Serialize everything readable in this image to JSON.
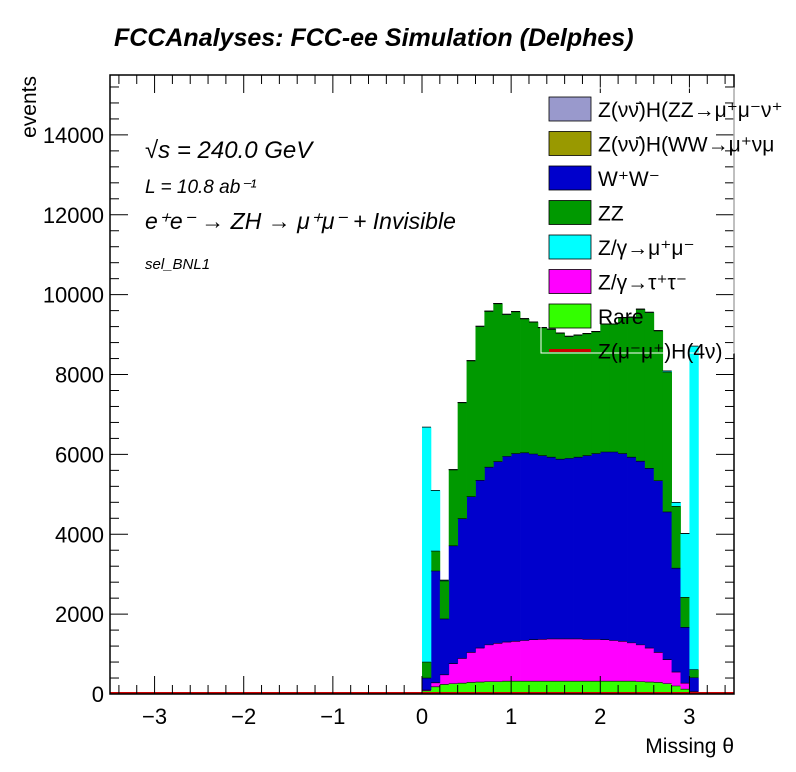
{
  "title": "FCCAnalyses: FCC-ee Simulation (Delphes)",
  "annotations": {
    "energy": "√s = 240.0 GeV",
    "lumi": "L = 10.8 ab⁻¹",
    "process": "e⁺e⁻ → ZH → μ⁺μ⁻ + Invisible",
    "selection": "sel_BNL1"
  },
  "chart_data": {
    "type": "bar",
    "stacked": true,
    "xlabel": "Missing θ",
    "ylabel": "events",
    "xlim": [
      -3.5,
      3.5
    ],
    "ylim": [
      0,
      15500
    ],
    "xticks": [
      -3,
      -2,
      -1,
      0,
      1,
      2,
      3
    ],
    "yticks": [
      0,
      2000,
      4000,
      6000,
      8000,
      10000,
      12000,
      14000
    ],
    "grid": false,
    "legend_position": "top-right",
    "bin_width": 0.1,
    "x": [
      0.05,
      0.15,
      0.25,
      0.35,
      0.45,
      0.55,
      0.65,
      0.75,
      0.85,
      0.95,
      1.05,
      1.15,
      1.25,
      1.35,
      1.45,
      1.55,
      1.65,
      1.75,
      1.85,
      1.95,
      2.05,
      2.15,
      2.25,
      2.35,
      2.45,
      2.55,
      2.65,
      2.75,
      2.85,
      2.95,
      3.05
    ],
    "series": [
      {
        "name": "Rare",
        "color": "#33ff00",
        "values": [
          80,
          180,
          240,
          260,
          270,
          290,
          300,
          310,
          310,
          320,
          320,
          320,
          320,
          320,
          320,
          320,
          320,
          320,
          320,
          320,
          320,
          320,
          320,
          320,
          310,
          300,
          290,
          260,
          200,
          120,
          40
        ]
      },
      {
        "name": "Z/γ→τ⁺τ⁻",
        "color": "#ff00ff",
        "values": [
          20,
          100,
          240,
          500,
          620,
          750,
          850,
          920,
          960,
          980,
          1000,
          1020,
          1040,
          1050,
          1060,
          1060,
          1060,
          1060,
          1050,
          1050,
          1040,
          1020,
          1000,
          960,
          920,
          850,
          750,
          600,
          350,
          150,
          20
        ]
      },
      {
        "name": "W⁺W⁻",
        "color": "#0000cc",
        "values": [
          300,
          2800,
          1400,
          2950,
          3500,
          3900,
          4200,
          4450,
          4550,
          4650,
          4700,
          4700,
          4650,
          4600,
          4550,
          4500,
          4520,
          4550,
          4600,
          4650,
          4700,
          4720,
          4700,
          4650,
          4600,
          4500,
          4300,
          3700,
          2600,
          1400,
          350
        ]
      },
      {
        "name": "ZZ",
        "color": "#009900",
        "values": [
          400,
          500,
          950,
          1900,
          2900,
          3400,
          3850,
          3900,
          3950,
          3550,
          3550,
          3350,
          3300,
          3200,
          3200,
          3150,
          3050,
          3050,
          3050,
          3050,
          3200,
          3200,
          3400,
          3500,
          3800,
          3900,
          3750,
          3500,
          1550,
          750,
          200
        ]
      },
      {
        "name": "Z/γ→μ⁺μ⁻",
        "color": "#00ffff",
        "values": [
          5880,
          1520,
          20,
          10,
          10,
          10,
          10,
          10,
          10,
          10,
          10,
          10,
          10,
          10,
          10,
          10,
          10,
          10,
          10,
          10,
          10,
          10,
          10,
          10,
          10,
          10,
          10,
          30,
          100,
          1600,
          8100
        ]
      },
      {
        "name": "Z(ν̄ν)H(WW→μ⁺νμ⁻ν̄)",
        "color": "#999900",
        "values": [
          0,
          0,
          0,
          0,
          0,
          0,
          0,
          0,
          0,
          0,
          0,
          0,
          0,
          0,
          0,
          0,
          0,
          0,
          0,
          0,
          0,
          0,
          0,
          0,
          0,
          0,
          0,
          0,
          0,
          0,
          0
        ]
      },
      {
        "name": "Z(ν̄ν)H(ZZ→μ⁺μ⁻ν̄ν)",
        "color": "#9999cc",
        "values": [
          0,
          0,
          0,
          0,
          0,
          0,
          0,
          0,
          0,
          0,
          0,
          0,
          0,
          0,
          0,
          0,
          0,
          0,
          0,
          0,
          0,
          0,
          0,
          0,
          0,
          0,
          0,
          0,
          0,
          0,
          0
        ]
      }
    ],
    "signal": {
      "name": "Z(μ⁻μ⁺)H(4ν)",
      "color": "#cc0000",
      "value": 0
    },
    "legend": [
      {
        "label": "Z(νν̄)H(ZZ→μ⁺μ⁻ν⁺",
        "color": "#9999cc",
        "kind": "box"
      },
      {
        "label": "Z(νν̄)H(WW→μ⁺νμ",
        "color": "#999900",
        "kind": "box"
      },
      {
        "label": "W⁺W⁻",
        "color": "#0000cc",
        "kind": "box"
      },
      {
        "label": "ZZ",
        "color": "#009900",
        "kind": "box"
      },
      {
        "label": "Z/γ→μ⁺μ⁻",
        "color": "#00ffff",
        "kind": "box"
      },
      {
        "label": "Z/γ→τ⁺τ⁻",
        "color": "#ff00ff",
        "kind": "box"
      },
      {
        "label": "Rare",
        "color": "#33ff00",
        "kind": "box"
      },
      {
        "label": "Z(μ⁻μ⁺)H(4ν)",
        "color": "#cc0000",
        "kind": "line"
      }
    ]
  }
}
